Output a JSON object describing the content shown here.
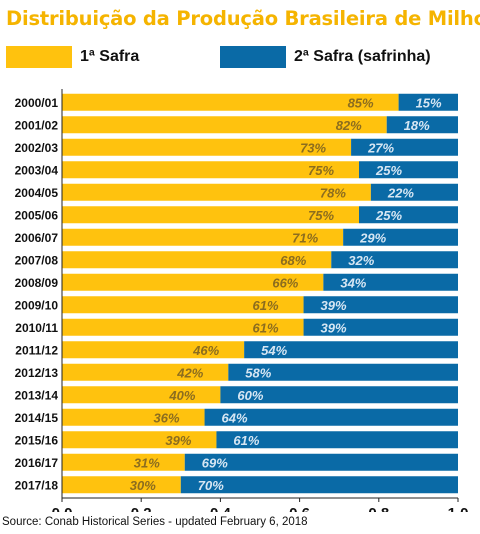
{
  "title": "Distribuição da Produção Brasileira de Milho",
  "source": "Source: Conab Historical Series - updated February 6, 2018",
  "colors": {
    "title": "#f5b400",
    "safra1": "#ffc20e",
    "safra2": "#0a6aa6",
    "label1": "#8c6d1f",
    "label2": "#d6e6f3"
  },
  "chart_data": {
    "type": "bar",
    "orientation": "horizontal",
    "stacked": true,
    "categories": [
      "2000/01",
      "2001/02",
      "2002/03",
      "2003/04",
      "2004/05",
      "2005/06",
      "2006/07",
      "2007/08",
      "2008/09",
      "2009/10",
      "2010/11",
      "2011/12",
      "2012/13",
      "2013/14",
      "2014/15",
      "2015/16",
      "2016/17",
      "2017/18"
    ],
    "series": [
      {
        "name": "1ª Safra",
        "values": [
          0.85,
          0.82,
          0.73,
          0.75,
          0.78,
          0.75,
          0.71,
          0.68,
          0.66,
          0.61,
          0.61,
          0.46,
          0.42,
          0.4,
          0.36,
          0.39,
          0.31,
          0.3
        ],
        "labels": [
          "85%",
          "82%",
          "73%",
          "75%",
          "78%",
          "75%",
          "71%",
          "68%",
          "66%",
          "61%",
          "61%",
          "46%",
          "42%",
          "40%",
          "36%",
          "39%",
          "31%",
          "30%"
        ]
      },
      {
        "name": "2ª Safra (safrinha)",
        "values": [
          0.15,
          0.18,
          0.27,
          0.25,
          0.22,
          0.25,
          0.29,
          0.32,
          0.34,
          0.39,
          0.39,
          0.54,
          0.58,
          0.6,
          0.64,
          0.61,
          0.69,
          0.7
        ],
        "labels": [
          "15%",
          "18%",
          "27%",
          "25%",
          "22%",
          "25%",
          "29%",
          "32%",
          "34%",
          "39%",
          "39%",
          "54%",
          "58%",
          "60%",
          "64%",
          "61%",
          "69%",
          "70%"
        ]
      }
    ],
    "x_ticks": [
      "0.0",
      "0.2",
      "0.4",
      "0.6",
      "0.8",
      "1.0"
    ],
    "xlim": [
      0,
      1
    ],
    "legend": "top"
  }
}
